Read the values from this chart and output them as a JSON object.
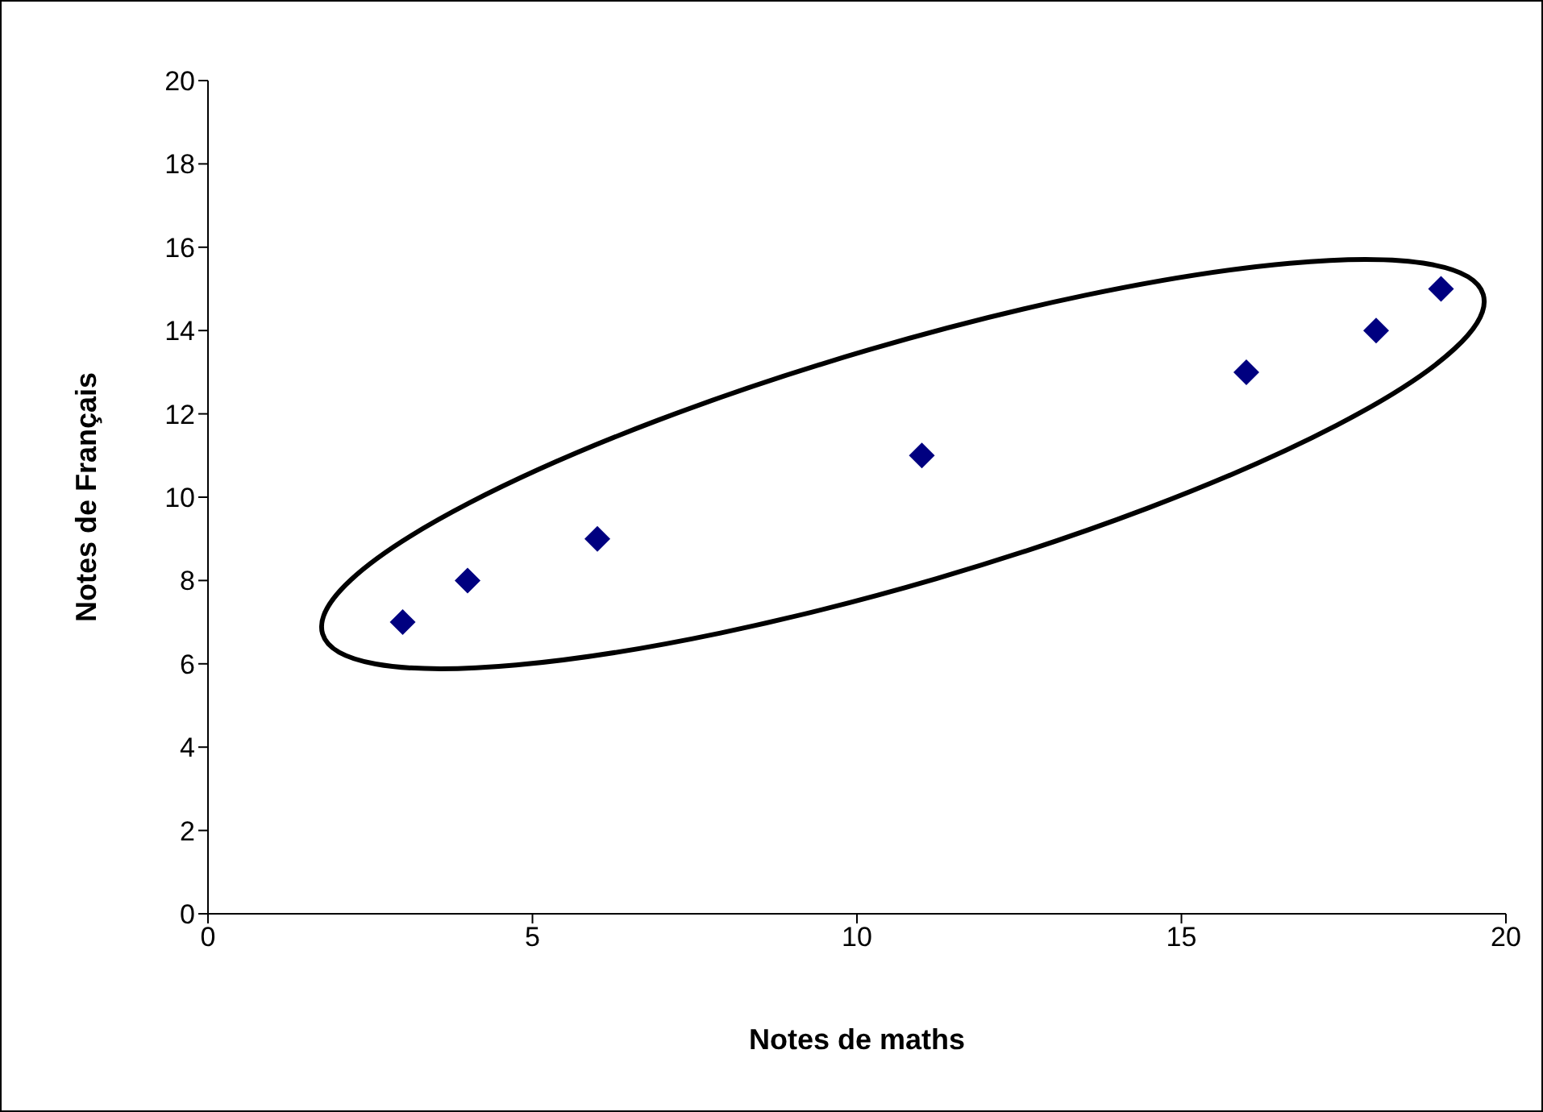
{
  "chart_data": {
    "type": "scatter",
    "xlabel": "Notes de maths",
    "ylabel": "Notes de Français",
    "x": [
      3,
      4,
      6,
      11,
      16,
      18,
      19
    ],
    "series": [
      {
        "color": "#000080",
        "values": [
          7,
          8,
          9,
          11,
          13,
          14,
          15
        ]
      }
    ],
    "xlim": [
      0,
      20
    ],
    "xticks": [
      0,
      5,
      10,
      15,
      20
    ],
    "ylim": [
      0,
      20
    ],
    "yticks": [
      0,
      2,
      4,
      6,
      8,
      10,
      12,
      14,
      16,
      18,
      20
    ],
    "marker": "diamond",
    "grid": false
  }
}
